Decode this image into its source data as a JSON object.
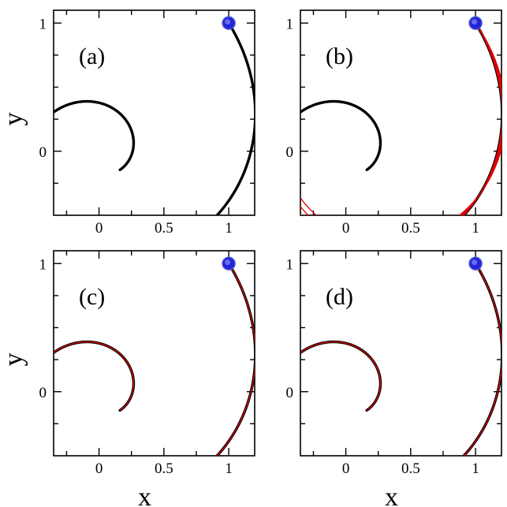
{
  "colors": {
    "trajectory": "#000000",
    "model": "#e00000",
    "start_marker_fill": "#2323dc",
    "start_marker_edge": "#4b5ad0",
    "frame": "#000000"
  },
  "chart_data": [
    {
      "type": "line",
      "panel_label": "(a)",
      "xlim": [
        -0.35,
        1.2
      ],
      "ylim": [
        -0.5,
        1.1
      ],
      "xticks": [
        0,
        0.5,
        1
      ],
      "xtick_labels": [
        "0",
        "0.5",
        "1"
      ],
      "yticks": [
        0,
        1
      ],
      "ytick_labels": [
        "0",
        "1"
      ],
      "xlabel": "",
      "ylabel": "y",
      "start_point": [
        1,
        1
      ],
      "trajectory": {
        "phi0": 3.8,
        "phi1": 11.6,
        "k": 0.24
      },
      "model_curves": []
    },
    {
      "type": "line",
      "panel_label": "(b)",
      "xlim": [
        -0.35,
        1.2
      ],
      "ylim": [
        -0.5,
        1.1
      ],
      "xticks": [
        0,
        0.5,
        1
      ],
      "xtick_labels": [
        "0",
        "0.5",
        "1"
      ],
      "yticks": [
        0,
        1
      ],
      "ytick_labels": [
        "0",
        "1"
      ],
      "xlabel": "",
      "ylabel": "",
      "start_point": [
        1,
        1
      ],
      "trajectory": {
        "phi0": 3.8,
        "phi1": 11.6,
        "k": 0.24
      },
      "model_curves": [
        {
          "phi0": 3.8,
          "phi1": 7.2,
          "k": 0.24,
          "d": 0.0
        },
        {
          "phi0": 3.8,
          "phi1": 7.2,
          "k": 0.24,
          "d": 0.04
        },
        {
          "phi0": 3.8,
          "phi1": 7.2,
          "k": 0.24,
          "d": 0.08
        },
        {
          "phi0": 3.8,
          "phi1": 7.2,
          "k": 0.24,
          "d": 0.12
        },
        {
          "phi0": 3.8,
          "phi1": 7.2,
          "k": 0.24,
          "d": 0.16
        }
      ]
    },
    {
      "type": "line",
      "panel_label": "(c)",
      "xlim": [
        -0.35,
        1.2
      ],
      "ylim": [
        -0.5,
        1.1
      ],
      "xticks": [
        0,
        0.5,
        1
      ],
      "xtick_labels": [
        "0",
        "0.5",
        "1"
      ],
      "yticks": [
        0,
        1
      ],
      "ytick_labels": [
        "0",
        "1"
      ],
      "xlabel": "x",
      "ylabel": "y",
      "start_point": [
        1,
        1
      ],
      "trajectory": {
        "phi0": 3.8,
        "phi1": 11.6,
        "k": 0.24
      },
      "model_curves": [
        {
          "phi0": 3.8,
          "phi1": 11.6,
          "k": 0.24,
          "d": 0.0
        }
      ]
    },
    {
      "type": "line",
      "panel_label": "(d)",
      "xlim": [
        -0.35,
        1.2
      ],
      "ylim": [
        -0.5,
        1.1
      ],
      "xticks": [
        0,
        0.5,
        1
      ],
      "xtick_labels": [
        "0",
        "0.5",
        "1"
      ],
      "yticks": [
        0,
        1
      ],
      "ytick_labels": [
        "0",
        "1"
      ],
      "xlabel": "x",
      "ylabel": "",
      "start_point": [
        1,
        1
      ],
      "trajectory": {
        "phi0": 3.8,
        "phi1": 11.6,
        "k": 0.24
      },
      "model_curves": [
        {
          "phi0": 3.8,
          "phi1": 11.6,
          "k": 0.24,
          "d": 0.0
        }
      ]
    }
  ]
}
